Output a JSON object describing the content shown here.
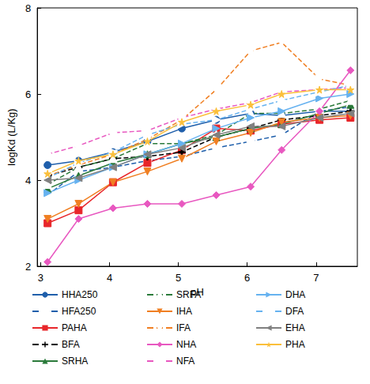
{
  "chart_data": {
    "type": "line",
    "x_label": "pH",
    "y_label": "logKd (L/Kg)",
    "x": [
      3.1,
      3.55,
      4.05,
      4.55,
      5.05,
      5.55,
      6.05,
      6.5,
      7.05,
      7.5
    ],
    "xlim": [
      2.95,
      7.6
    ],
    "xticks": [
      3,
      4,
      5,
      6,
      7
    ],
    "ylim": [
      2,
      8
    ],
    "yticks": [
      2,
      4,
      6,
      8
    ],
    "grid": false,
    "legend": "bottom",
    "series": [
      {
        "name": "HHA250",
        "color": "#1f5fab",
        "marker": "circle",
        "line_style": "solid",
        "values": [
          4.35,
          4.45,
          4.65,
          4.9,
          5.2,
          5.4,
          5.55,
          5.5,
          5.6,
          5.6
        ]
      },
      {
        "name": "HFA250",
        "color": "#1f5fab",
        "marker": "open_circle",
        "line_style": "dashed",
        "values": [
          3.65,
          4.2,
          4.3,
          4.45,
          4.55,
          4.75,
          4.9,
          5.05,
          5.6,
          5.7
        ]
      },
      {
        "name": "PAHA",
        "color": "#e8262a",
        "marker": "square",
        "line_style": "solid",
        "values": [
          3.0,
          3.3,
          3.95,
          4.4,
          4.7,
          5.2,
          5.15,
          5.3,
          5.4,
          5.45
        ]
      },
      {
        "name": "BFA",
        "color": "#000000",
        "marker": "plus",
        "line_style": "dashed",
        "values": [
          4.1,
          4.3,
          4.5,
          4.55,
          4.65,
          5.0,
          5.2,
          5.4,
          5.5,
          5.6
        ]
      },
      {
        "name": "SRHA",
        "color": "#2a7a3a",
        "marker": "triangle_up",
        "line_style": "solid",
        "values": [
          3.8,
          4.1,
          4.4,
          4.6,
          4.85,
          5.0,
          5.2,
          5.3,
          5.55,
          5.75
        ]
      },
      {
        "name": "SRFA",
        "color": "#2a7a3a",
        "marker": "open_triangle_up",
        "line_style": "dashed",
        "values": [
          3.9,
          4.3,
          4.5,
          4.85,
          4.85,
          5.05,
          5.55,
          5.55,
          5.65,
          5.85
        ]
      },
      {
        "name": "IHA",
        "color": "#f07f22",
        "marker": "triangle_down",
        "line_style": "solid",
        "values": [
          3.1,
          3.45,
          3.95,
          4.2,
          4.5,
          4.9,
          5.1,
          5.35,
          5.45,
          5.5
        ]
      },
      {
        "name": "IFA",
        "color": "#f07f22",
        "marker": "open_triangle_down",
        "line_style": "dashed",
        "values": [
          4.1,
          4.35,
          4.6,
          4.95,
          5.4,
          6.1,
          7.0,
          7.2,
          6.35,
          6.2
        ]
      },
      {
        "name": "NHA",
        "color": "#e858c0",
        "marker": "diamond",
        "line_style": "solid",
        "values": [
          2.1,
          3.1,
          3.35,
          3.45,
          3.45,
          3.65,
          3.85,
          4.7,
          5.6,
          6.55
        ]
      },
      {
        "name": "NFA",
        "color": "#e858c0",
        "marker": "open_diamond",
        "line_style": "dashed",
        "values": [
          4.6,
          4.8,
          5.1,
          5.15,
          5.45,
          5.65,
          5.8,
          6.05,
          6.1,
          6.15
        ]
      },
      {
        "name": "DHA",
        "color": "#66b2f0",
        "marker": "triangle_right",
        "line_style": "solid",
        "values": [
          3.7,
          4.0,
          4.3,
          4.6,
          4.85,
          5.2,
          5.45,
          5.6,
          5.9,
          6.0
        ]
      },
      {
        "name": "DFA",
        "color": "#66b2f0",
        "marker": "open_triangle_right",
        "line_style": "dashed",
        "values": [
          4.05,
          4.4,
          4.65,
          5.05,
          5.3,
          5.4,
          5.65,
          5.85,
          6.05,
          6.2
        ]
      },
      {
        "name": "EHA",
        "color": "#808080",
        "marker": "triangle_left",
        "line_style": "solid",
        "values": [
          4.0,
          4.05,
          4.3,
          4.6,
          4.75,
          5.05,
          5.25,
          5.25,
          5.45,
          5.55
        ]
      },
      {
        "name": "PHA",
        "color": "#fbbf3a",
        "marker": "star",
        "line_style": "solid",
        "values": [
          4.15,
          4.45,
          4.6,
          4.9,
          5.35,
          5.6,
          5.75,
          6.0,
          6.1,
          6.1
        ]
      }
    ]
  }
}
